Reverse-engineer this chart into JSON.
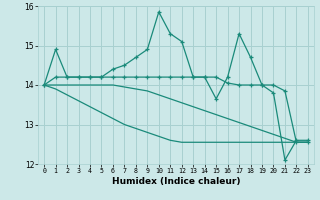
{
  "xlabel": "Humidex (Indice chaleur)",
  "x": [
    0,
    1,
    2,
    3,
    4,
    5,
    6,
    7,
    8,
    9,
    10,
    11,
    12,
    13,
    14,
    15,
    16,
    17,
    18,
    19,
    20,
    21,
    22,
    23
  ],
  "line1": [
    14.0,
    14.9,
    14.2,
    14.2,
    14.2,
    14.2,
    14.4,
    14.5,
    14.7,
    14.9,
    15.85,
    15.3,
    15.1,
    14.2,
    14.2,
    13.65,
    14.2,
    15.3,
    14.7,
    14.0,
    13.8,
    12.1,
    12.6,
    12.6
  ],
  "line2": [
    14.0,
    14.2,
    14.2,
    14.2,
    14.2,
    14.2,
    14.2,
    14.2,
    14.2,
    14.2,
    14.2,
    14.2,
    14.2,
    14.2,
    14.2,
    14.2,
    14.05,
    14.0,
    14.0,
    14.0,
    14.0,
    13.85,
    12.55,
    12.55
  ],
  "line3": [
    14.0,
    14.0,
    14.0,
    14.0,
    14.0,
    14.0,
    14.0,
    13.95,
    13.9,
    13.85,
    13.75,
    13.65,
    13.55,
    13.45,
    13.35,
    13.25,
    13.15,
    13.05,
    12.95,
    12.85,
    12.75,
    12.65,
    12.55,
    12.55
  ],
  "line4": [
    14.0,
    13.9,
    13.75,
    13.6,
    13.45,
    13.3,
    13.15,
    13.0,
    12.9,
    12.8,
    12.7,
    12.6,
    12.55,
    12.55,
    12.55,
    12.55,
    12.55,
    12.55,
    12.55,
    12.55,
    12.55,
    12.55,
    12.55,
    12.55
  ],
  "line_color": "#1a8a7a",
  "bg_color": "#cce8e8",
  "grid_color": "#a8d0d0",
  "ylim": [
    12,
    16
  ],
  "xlim": [
    -0.5,
    23.5
  ],
  "yticks": [
    12,
    13,
    14,
    15,
    16
  ],
  "xticks": [
    0,
    1,
    2,
    3,
    4,
    5,
    6,
    7,
    8,
    9,
    10,
    11,
    12,
    13,
    14,
    15,
    16,
    17,
    18,
    19,
    20,
    21,
    22,
    23
  ]
}
